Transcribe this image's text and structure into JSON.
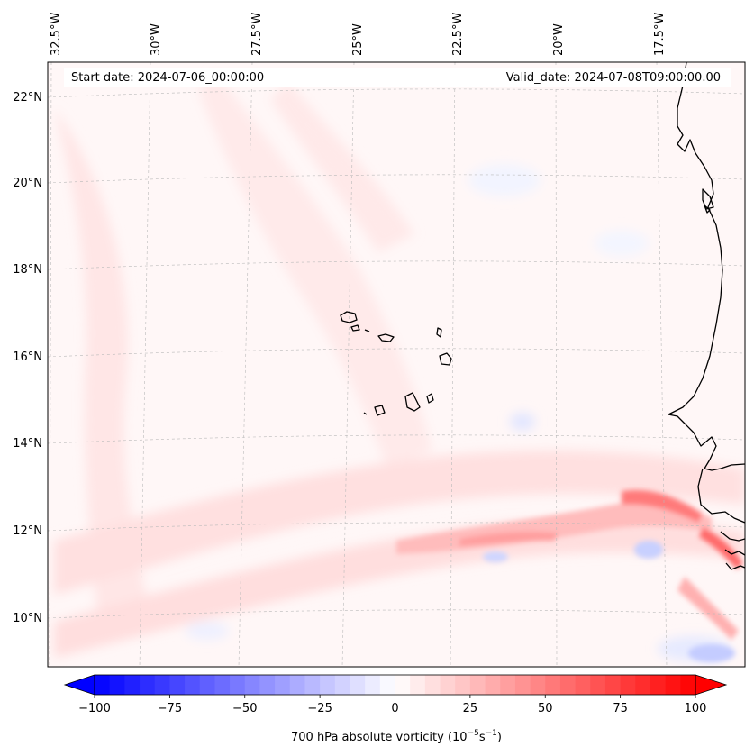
{
  "header": {
    "start_date": "Start date: 2024-07-06_00:00:00",
    "valid_date": "Valid_date: 2024-07-08T09:00:00.00"
  },
  "map": {
    "lon_labels": [
      "32.5°W",
      "30°W",
      "27.5°W",
      "25°W",
      "22.5°W",
      "20°W",
      "17.5°W"
    ],
    "lat_labels": [
      "22°N",
      "20°N",
      "18°N",
      "16°N",
      "14°N",
      "12°N",
      "10°N"
    ]
  },
  "colorbar": {
    "min": -100,
    "max": 100,
    "step": 5,
    "ticks": [
      "−100",
      "−75",
      "−50",
      "−25",
      "0",
      "25",
      "50",
      "75",
      "100"
    ],
    "units_label": "700 hPa absolute vorticity (10",
    "units_exp1": "−5",
    "units_mid": "s",
    "units_exp2": "−1",
    "units_close": ")"
  },
  "colors": {
    "negative": "#0000ff",
    "zero": "#ffffff",
    "positive": "#ff0000",
    "coast": "#000000",
    "grid": "#b0b0b0"
  }
}
